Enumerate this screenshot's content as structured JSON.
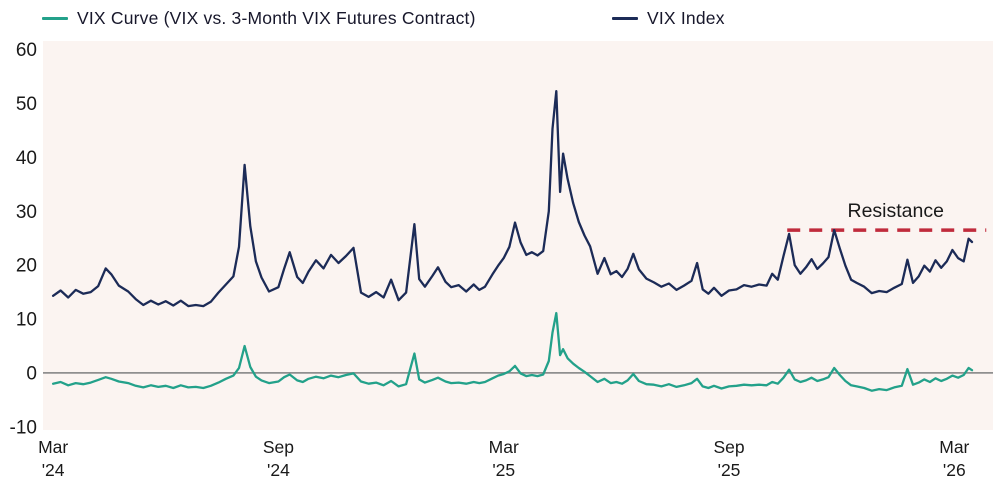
{
  "chart_data": {
    "type": "line",
    "title": "",
    "xlabel": "",
    "ylabel": "",
    "x_unit": "months since Mar 2024",
    "grid": false,
    "legend_position": "top",
    "plot_bg": "#fbf4f1",
    "zero_line_color": "#8f8f8f",
    "axis_text_color": "#1a1a1a",
    "ylim": [
      -10.6,
      61.6
    ],
    "xlim_months": [
      -0.27,
      25.03
    ],
    "y_ticks": [
      60,
      50,
      40,
      30,
      20,
      10,
      0,
      -10
    ],
    "x_ticks": [
      {
        "month": 0,
        "line1": "Mar",
        "line2": "'24"
      },
      {
        "month": 6,
        "line1": "Sep",
        "line2": "'24"
      },
      {
        "month": 12,
        "line1": "Mar",
        "line2": "'25"
      },
      {
        "month": 18,
        "line1": "Sep",
        "line2": "'25"
      },
      {
        "month": 24,
        "line1": "Mar",
        "line2": "'26"
      }
    ],
    "x": [
      0,
      0.2,
      0.4,
      0.6,
      0.8,
      1.0,
      1.2,
      1.4,
      1.55,
      1.75,
      2.0,
      2.2,
      2.4,
      2.6,
      2.8,
      3.0,
      3.2,
      3.4,
      3.6,
      3.8,
      4.0,
      4.2,
      4.4,
      4.6,
      4.8,
      4.95,
      5.1,
      5.25,
      5.4,
      5.55,
      5.75,
      6.0,
      6.15,
      6.3,
      6.5,
      6.65,
      6.8,
      7.0,
      7.2,
      7.4,
      7.6,
      7.8,
      8.0,
      8.2,
      8.4,
      8.6,
      8.8,
      9.0,
      9.2,
      9.4,
      9.62,
      9.75,
      9.9,
      10.1,
      10.25,
      10.45,
      10.6,
      10.8,
      11.0,
      11.2,
      11.35,
      11.5,
      11.7,
      11.85,
      12.0,
      12.15,
      12.3,
      12.45,
      12.6,
      12.75,
      12.9,
      13.05,
      13.2,
      13.3,
      13.4,
      13.5,
      13.58,
      13.7,
      13.85,
      14.0,
      14.15,
      14.3,
      14.5,
      14.68,
      14.85,
      15.0,
      15.15,
      15.3,
      15.45,
      15.6,
      15.8,
      16.0,
      16.2,
      16.4,
      16.6,
      16.8,
      17.0,
      17.15,
      17.3,
      17.45,
      17.6,
      17.8,
      18.0,
      18.2,
      18.4,
      18.6,
      18.8,
      19.0,
      19.15,
      19.3,
      19.45,
      19.6,
      19.75,
      19.9,
      20.05,
      20.2,
      20.35,
      20.5,
      20.65,
      20.8,
      20.95,
      21.1,
      21.25,
      21.4,
      21.6,
      21.8,
      22.0,
      22.2,
      22.4,
      22.6,
      22.75,
      22.9,
      23.05,
      23.2,
      23.35,
      23.5,
      23.65,
      23.8,
      23.95,
      24.1,
      24.25,
      24.38,
      24.47
    ],
    "series": [
      {
        "name": "VIX Curve (VIX vs. 3-Month VIX Futures Contract)",
        "slug": "vix-curve",
        "color": "#23a18a",
        "values": [
          -2.0,
          -1.7,
          -2.3,
          -1.9,
          -2.1,
          -1.8,
          -1.3,
          -0.8,
          -1.1,
          -1.6,
          -1.9,
          -2.4,
          -2.7,
          -2.3,
          -2.6,
          -2.4,
          -2.8,
          -2.3,
          -2.7,
          -2.6,
          -2.8,
          -2.4,
          -1.8,
          -1.1,
          -0.5,
          0.9,
          5.0,
          1.1,
          -0.7,
          -1.4,
          -1.9,
          -1.6,
          -0.8,
          -0.3,
          -1.4,
          -1.7,
          -1.1,
          -0.7,
          -1.0,
          -0.5,
          -0.8,
          -0.4,
          -0.1,
          -1.6,
          -2.0,
          -1.8,
          -2.3,
          -1.5,
          -2.5,
          -2.1,
          3.6,
          -1.2,
          -1.8,
          -1.3,
          -0.9,
          -1.6,
          -1.9,
          -1.8,
          -2.0,
          -1.7,
          -1.9,
          -1.7,
          -1.0,
          -0.5,
          -0.2,
          0.3,
          1.3,
          -0.1,
          -0.6,
          -0.4,
          -0.6,
          -0.3,
          2.2,
          7.5,
          11.1,
          3.3,
          4.4,
          2.7,
          1.7,
          0.9,
          0.2,
          -0.6,
          -1.7,
          -1.1,
          -1.9,
          -1.7,
          -2.0,
          -1.4,
          -0.2,
          -1.5,
          -2.1,
          -2.2,
          -2.5,
          -2.1,
          -2.6,
          -2.3,
          -1.9,
          -1.1,
          -2.5,
          -2.8,
          -2.4,
          -2.9,
          -2.5,
          -2.4,
          -2.2,
          -2.3,
          -2.2,
          -2.3,
          -1.7,
          -2.0,
          -0.9,
          0.6,
          -1.2,
          -1.7,
          -1.4,
          -0.9,
          -1.5,
          -1.2,
          -0.8,
          0.9,
          -0.4,
          -1.5,
          -2.3,
          -2.5,
          -2.8,
          -3.3,
          -3.0,
          -3.2,
          -2.7,
          -2.4,
          0.7,
          -2.2,
          -1.8,
          -1.2,
          -1.7,
          -1.0,
          -1.5,
          -1.1,
          -0.5,
          -0.9,
          -0.4,
          0.9,
          0.5
        ]
      },
      {
        "name": "VIX Index",
        "slug": "vix-index",
        "color": "#1c2b57",
        "values": [
          14.3,
          15.3,
          14.0,
          15.4,
          14.7,
          15.0,
          16.1,
          19.4,
          18.3,
          16.2,
          15.1,
          13.7,
          12.6,
          13.4,
          12.7,
          13.3,
          12.5,
          13.4,
          12.4,
          12.6,
          12.4,
          13.2,
          14.9,
          16.4,
          17.9,
          23.4,
          38.6,
          27.2,
          20.7,
          17.7,
          15.1,
          15.9,
          19.3,
          22.4,
          17.8,
          16.7,
          18.8,
          20.9,
          19.4,
          21.9,
          20.4,
          21.7,
          23.2,
          14.9,
          14.1,
          15.0,
          14.0,
          17.3,
          13.5,
          14.9,
          27.6,
          17.4,
          16.0,
          18.0,
          19.6,
          16.9,
          15.9,
          16.3,
          15.1,
          16.4,
          15.4,
          16.0,
          18.3,
          19.9,
          21.3,
          23.4,
          27.9,
          24.2,
          21.9,
          22.4,
          21.8,
          22.6,
          30.0,
          45.3,
          52.3,
          33.6,
          40.7,
          36.0,
          31.5,
          28.0,
          25.5,
          23.5,
          18.4,
          21.3,
          18.3,
          18.9,
          17.8,
          19.3,
          22.1,
          19.2,
          17.5,
          16.8,
          16.0,
          16.6,
          15.4,
          16.2,
          17.1,
          20.4,
          15.5,
          14.7,
          15.8,
          14.3,
          15.3,
          15.5,
          16.3,
          16.0,
          16.4,
          16.2,
          18.4,
          17.3,
          21.7,
          25.8,
          20.0,
          18.4,
          19.6,
          21.1,
          19.3,
          20.3,
          21.5,
          26.5,
          23.1,
          19.9,
          17.3,
          16.7,
          16.0,
          14.8,
          15.2,
          15.0,
          15.8,
          16.5,
          21.0,
          16.7,
          17.9,
          19.9,
          18.8,
          20.9,
          19.5,
          20.7,
          22.8,
          21.3,
          20.7,
          24.9,
          24.3
        ]
      }
    ],
    "annotation": {
      "label": "Resistance",
      "value": 26.5,
      "start_month": 19.55,
      "end_month": 24.85,
      "color": "#c02b3c"
    },
    "zero_line_value": 0
  }
}
